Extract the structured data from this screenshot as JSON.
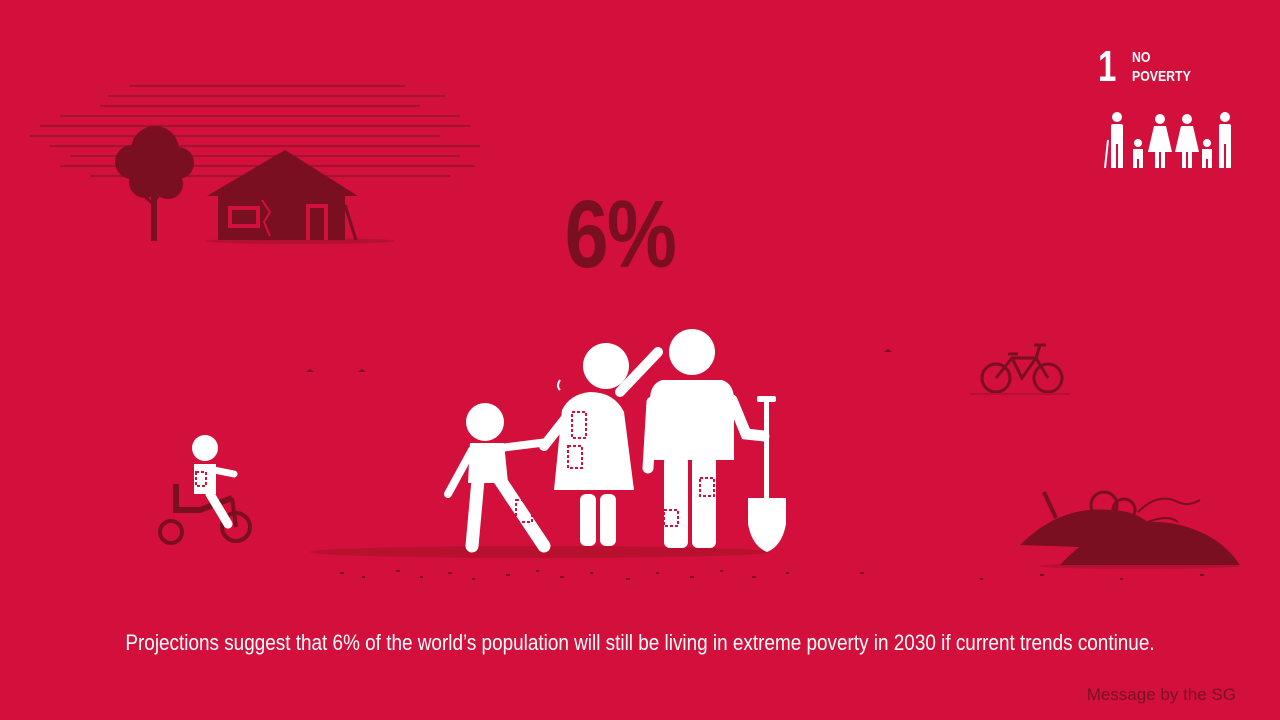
{
  "stat": {
    "value": "6%"
  },
  "sdg_badge": {
    "number": "1",
    "title_line1": "NO",
    "title_line2": "POVERTY"
  },
  "caption": {
    "text": "Projections suggest that 6% of the world’s population will still be living in extreme poverty in 2030 if current trends continue."
  },
  "credit": {
    "text": "Message by the SG"
  },
  "colors": {
    "background": "#d30f3c",
    "dark_accent": "#7a0f22",
    "figure": "#ffffff"
  },
  "icons": [
    "family-icon",
    "tree-icon",
    "house-icon",
    "bicycle-icon",
    "child-tricycle-icon",
    "rubble-icon",
    "shovel-icon"
  ]
}
